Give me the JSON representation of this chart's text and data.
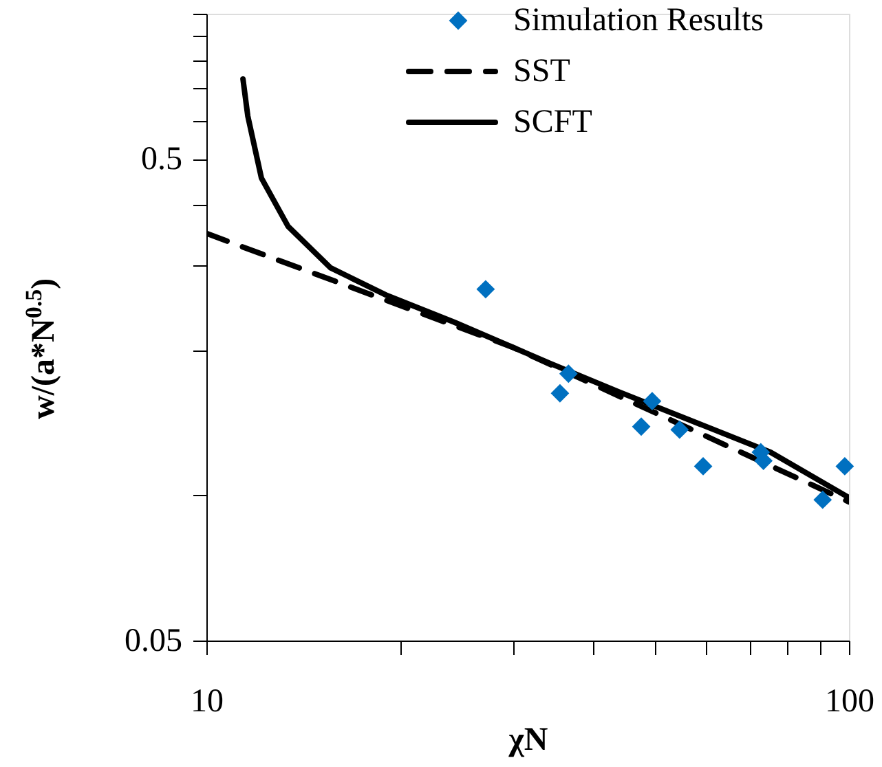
{
  "chart_data": {
    "type": "line",
    "xlabel": "χN",
    "ylabel": "w/(a*N$^{0.5}$)",
    "log": "xy",
    "legend": "top right",
    "grid": false,
    "xlim": [
      10,
      100
    ],
    "xticks": [
      10,
      {
        "value": 20,
        "label": null
      },
      {
        "value": 30,
        "label": null
      },
      {
        "value": 40,
        "label": null
      },
      {
        "value": 50,
        "label": null
      },
      {
        "value": 60,
        "label": null
      },
      {
        "value": 70,
        "label": null
      },
      {
        "value": 80,
        "label": null
      },
      {
        "value": 90,
        "label": null
      },
      100
    ],
    "ylim": [
      0.05,
      1
    ],
    "yticks": [
      0.05,
      {
        "value": 0.1,
        "label": null
      },
      {
        "value": 0.2,
        "label": null
      },
      {
        "value": 0.3,
        "label": null
      },
      {
        "value": 0.4,
        "label": null
      },
      0.5,
      {
        "value": 0.6,
        "label": null
      },
      {
        "value": 0.7,
        "label": null
      },
      {
        "value": 0.8,
        "label": null
      },
      {
        "value": 0.9,
        "label": null
      },
      {
        "value": 1,
        "label": null
      }
    ],
    "series": [
      {
        "name": "Simulation Results",
        "type": "scatter",
        "marker": "diamond",
        "color": "#0070c0",
        "x": [
          27.2,
          35.5,
          36.6,
          47.5,
          49.4,
          54.5,
          59.3,
          72.9,
          73.6,
          91.0,
          98.5
        ],
        "values": [
          0.268,
          0.163,
          0.179,
          0.139,
          0.157,
          0.137,
          0.115,
          0.123,
          0.118,
          0.098,
          0.115
        ]
      },
      {
        "name": "SST",
        "line_style": "dashed",
        "color": "#000000",
        "x": [
          10,
          30,
          100
        ],
        "values": [
          0.35,
          0.203,
          0.097
        ]
      },
      {
        "name": "SCFT",
        "line_style": "solid",
        "color": "#000000",
        "x": [
          11.4,
          11.6,
          12.18,
          13.4,
          15.6,
          19.0,
          24.3,
          34.3,
          43.9,
          56.1,
          75.5,
          100
        ],
        "values": [
          0.732,
          0.613,
          0.456,
          0.362,
          0.297,
          0.261,
          0.229,
          0.188,
          0.164,
          0.144,
          0.123,
          0.099
        ]
      }
    ]
  }
}
